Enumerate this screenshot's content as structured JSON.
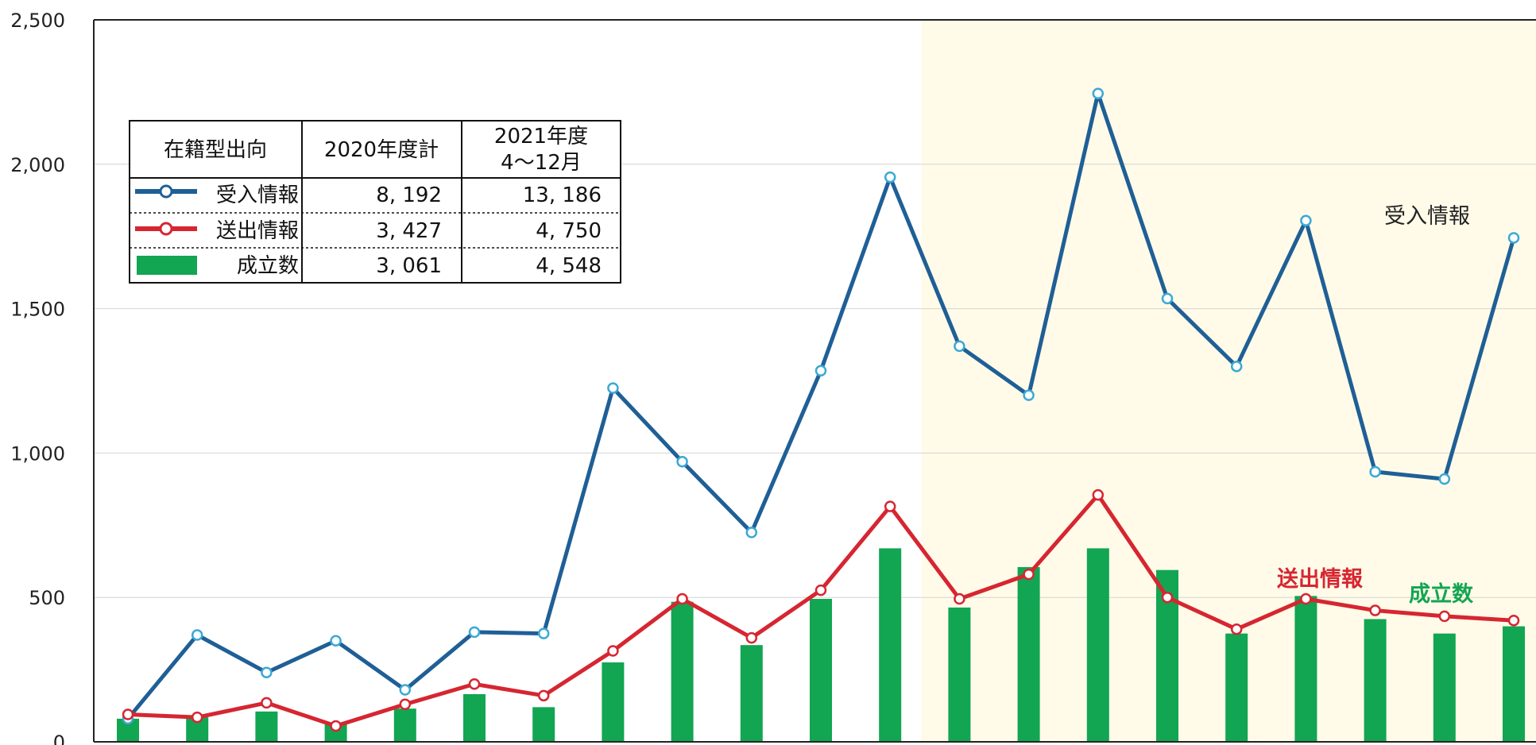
{
  "chart_data": {
    "type": "bar+line",
    "ylim": [
      0,
      2500
    ],
    "yticks": [
      0,
      500,
      1000,
      1500,
      2000,
      2500
    ],
    "ytick_labels": [
      "0",
      "500",
      "1,000",
      "1,500",
      "2,000",
      "2,500"
    ],
    "grid": true,
    "highlight_from_index": 12,
    "colors": {
      "received": "#1f5f96",
      "sent": "#d62631",
      "matched": "#12a552",
      "highlight_bg": "#fffbe8",
      "grid": "#d4d4d4",
      "axis": "#222222"
    },
    "series": [
      {
        "key": "received",
        "name": "受入情報",
        "kind": "line",
        "values": [
          80,
          370,
          240,
          350,
          180,
          380,
          375,
          1225,
          970,
          725,
          1285,
          1955,
          1370,
          1200,
          2245,
          1535,
          1300,
          1805,
          935,
          910,
          1745
        ]
      },
      {
        "key": "sent",
        "name": "送出情報",
        "kind": "line",
        "values": [
          95,
          85,
          135,
          55,
          130,
          200,
          160,
          315,
          495,
          360,
          525,
          815,
          495,
          580,
          855,
          500,
          390,
          495,
          455,
          435,
          420
        ]
      },
      {
        "key": "matched",
        "name": "成立数",
        "kind": "bar",
        "values": [
          80,
          85,
          105,
          60,
          115,
          165,
          120,
          275,
          485,
          335,
          495,
          670,
          465,
          605,
          670,
          595,
          375,
          505,
          425,
          375,
          400
        ]
      }
    ],
    "legend_table": {
      "header": [
        "在籍型出向",
        "2020年度計",
        "2021年度",
        "4〜12月"
      ],
      "rows": [
        {
          "label": "受入情報",
          "fy2020": "8, 192",
          "fy2021": "13, 186"
        },
        {
          "label": "送出情報",
          "fy2020": "3, 427",
          "fy2021": "4, 750"
        },
        {
          "label": "成立数",
          "fy2020": "3, 061",
          "fy2021": "4, 548"
        }
      ]
    },
    "annotations": {
      "received": "受入情報",
      "sent": "送出情報",
      "matched": "成立数"
    }
  }
}
